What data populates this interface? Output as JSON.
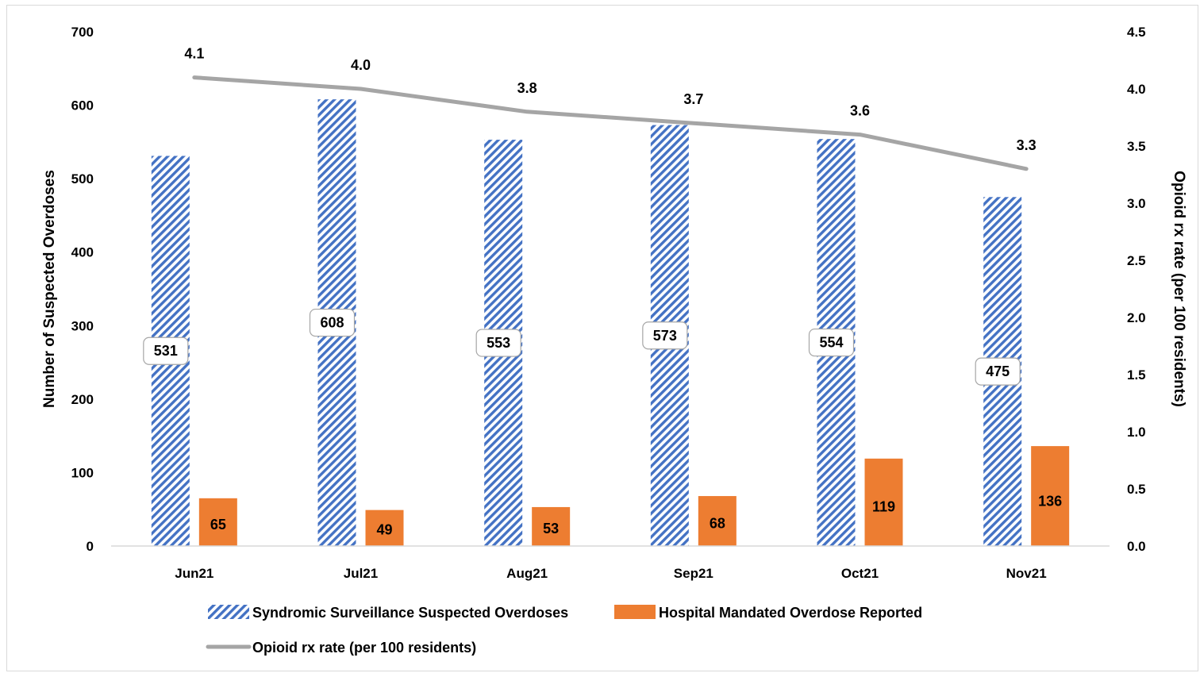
{
  "chart_data": {
    "type": "bar",
    "categories": [
      "Jun21",
      "Jul21",
      "Aug21",
      "Sep21",
      "Oct21",
      "Nov21"
    ],
    "series": [
      {
        "name": "Syndromic Surveillance Suspected Overdoses",
        "kind": "bar",
        "axis": "left",
        "values": [
          531,
          608,
          553,
          573,
          554,
          475
        ],
        "color": "#4472c4",
        "pattern": "diagonal-stripes"
      },
      {
        "name": "Hospital Mandated Overdose Reported",
        "kind": "bar",
        "axis": "left",
        "values": [
          65,
          49,
          53,
          68,
          119,
          136
        ],
        "color": "#ed7d31"
      },
      {
        "name": "Opioid rx rate (per 100 residents)",
        "kind": "line",
        "axis": "right",
        "values": [
          4.1,
          4.0,
          3.8,
          3.7,
          3.6,
          3.3
        ],
        "color": "#a5a5a5"
      }
    ],
    "line_labels": [
      "4.1",
      "4.0",
      "3.8",
      "3.7",
      "3.6",
      "3.3"
    ],
    "ylabel": "Number of Suspected Overdoses",
    "y2label": "Opioid rx rate (per 100 residents)",
    "ylim": [
      0,
      700
    ],
    "y2lim": [
      0,
      4.5
    ],
    "yticks": [
      0,
      100,
      200,
      300,
      400,
      500,
      600,
      700
    ],
    "y2ticks": [
      "0.0",
      "0.5",
      "1.0",
      "1.5",
      "2.0",
      "2.5",
      "3.0",
      "3.5",
      "4.0",
      "4.5"
    ],
    "grid": false,
    "legend_position": "bottom"
  }
}
